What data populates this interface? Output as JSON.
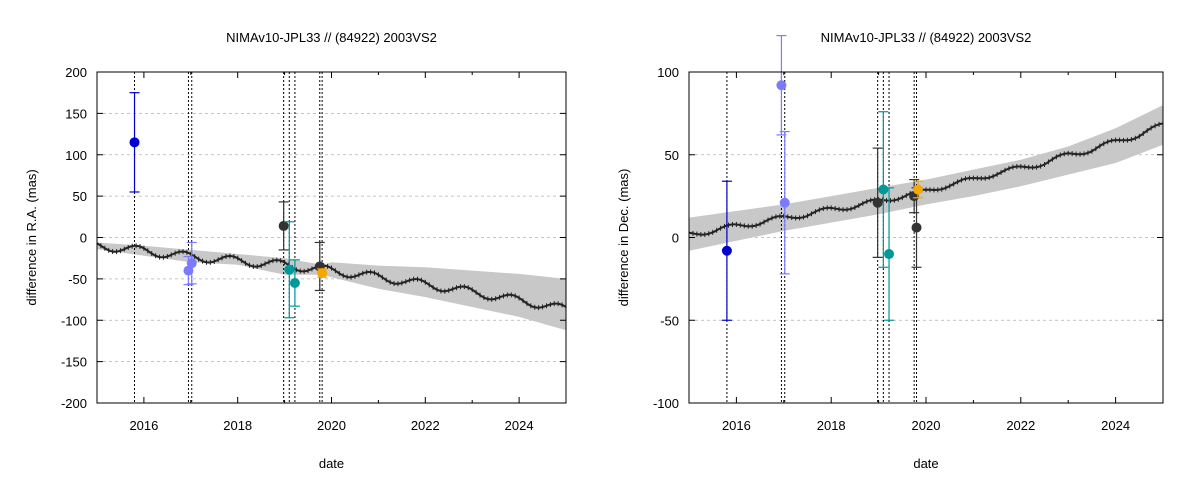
{
  "chart_data": [
    {
      "type": "line",
      "title": "NIMAv10-JPL33 // (84922) 2003VS2",
      "xlabel": "date",
      "ylabel": "difference in R.A. (mas)",
      "xlim": [
        2015.0,
        2025.0
      ],
      "ylim": [
        -200,
        200
      ],
      "x_ticks": [
        2016,
        2018,
        2020,
        2022,
        2024
      ],
      "y_ticks": [
        -200,
        -150,
        -100,
        -50,
        0,
        50,
        100,
        150,
        200
      ],
      "grid": true,
      "legend": "none",
      "observation_epochs": [
        2015.8,
        2016.95,
        2017.02,
        2018.98,
        2019.1,
        2019.22,
        2019.75,
        2019.8
      ],
      "series": [
        {
          "kind": "band",
          "color": "#c8c8c8",
          "x": [
            2015.0,
            2016.0,
            2017.0,
            2018.0,
            2019.0,
            2019.8,
            2020.0,
            2021.0,
            2022.0,
            2023.0,
            2024.0,
            2025.0
          ],
          "lower": [
            -14,
            -22,
            -30,
            -33,
            -45,
            -45,
            -48,
            -62,
            -72,
            -84,
            -96,
            -112
          ],
          "upper": [
            -6,
            -10,
            -15,
            -20,
            -25,
            -33,
            -30,
            -34,
            -36,
            -40,
            -44,
            -50
          ]
        },
        {
          "kind": "line",
          "color": "#222222",
          "x": [
            2015.0,
            2015.5,
            2016.0,
            2016.5,
            2017.0,
            2017.5,
            2018.0,
            2018.5,
            2019.0,
            2019.5,
            2020.0,
            2020.5,
            2021.0,
            2021.5,
            2022.0,
            2022.5,
            2023.0,
            2023.5,
            2024.0,
            2024.5,
            2025.0
          ],
          "y": [
            -10,
            -13,
            -16,
            -20,
            -23,
            -26,
            -28,
            -31,
            -33,
            -37,
            -40,
            -44,
            -48,
            -52,
            -57,
            -61,
            -66,
            -71,
            -76,
            -81,
            -87
          ],
          "wiggle": 5
        },
        {
          "kind": "points",
          "color": "#0000cc",
          "points": [
            {
              "x": 2015.8,
              "y": 115,
              "err": 60
            }
          ]
        },
        {
          "kind": "points",
          "color": "#7b7bff",
          "points": [
            {
              "x": 2016.95,
              "y": -40,
              "err": 17
            },
            {
              "x": 2017.02,
              "y": -31,
              "err": 25
            }
          ]
        },
        {
          "kind": "points",
          "color": "#333333",
          "points": [
            {
              "x": 2018.98,
              "y": 14,
              "err": 29
            },
            {
              "x": 2019.75,
              "y": -35,
              "err": 29
            }
          ]
        },
        {
          "kind": "points",
          "color": "#009999",
          "points": [
            {
              "x": 2019.1,
              "y": -39,
              "err": 58
            },
            {
              "x": 2019.22,
              "y": -55,
              "err": 28
            }
          ]
        },
        {
          "kind": "points",
          "color": "#f5a800",
          "points": [
            {
              "x": 2019.8,
              "y": -43,
              "err": 5
            }
          ]
        }
      ]
    },
    {
      "type": "line",
      "title": "NIMAv10-JPL33 // (84922) 2003VS2",
      "xlabel": "date",
      "ylabel": "difference in Dec. (mas)",
      "xlim": [
        2015.0,
        2025.0
      ],
      "ylim": [
        -100,
        100
      ],
      "x_ticks": [
        2016,
        2018,
        2020,
        2022,
        2024
      ],
      "y_ticks": [
        -100,
        -50,
        0,
        50,
        100
      ],
      "grid": true,
      "legend": "none",
      "observation_epochs": [
        2015.8,
        2016.95,
        2017.02,
        2018.98,
        2019.1,
        2019.22,
        2019.75,
        2019.8
      ],
      "series": [
        {
          "kind": "band",
          "color": "#c8c8c8",
          "x": [
            2015.0,
            2016.0,
            2017.0,
            2018.0,
            2019.0,
            2020.0,
            2021.0,
            2022.0,
            2023.0,
            2024.0,
            2025.0
          ],
          "lower": [
            -8,
            -2,
            4,
            9,
            14,
            20,
            25,
            31,
            38,
            45,
            56
          ],
          "upper": [
            12,
            16,
            20,
            25,
            30,
            35,
            41,
            47,
            55,
            66,
            80
          ]
        },
        {
          "kind": "line",
          "color": "#222222",
          "x": [
            2015.0,
            2015.5,
            2016.0,
            2016.5,
            2017.0,
            2017.5,
            2018.0,
            2018.5,
            2019.0,
            2019.5,
            2020.0,
            2020.5,
            2021.0,
            2021.5,
            2022.0,
            2022.5,
            2023.0,
            2023.5,
            2024.0,
            2024.5,
            2025.0
          ],
          "y": [
            2,
            4,
            7,
            9,
            12,
            14,
            17,
            19,
            22,
            25,
            28,
            32,
            35,
            39,
            42,
            45,
            50,
            53,
            58,
            62,
            68
          ],
          "wiggle": 1.5
        },
        {
          "kind": "points",
          "color": "#0000cc",
          "points": [
            {
              "x": 2015.8,
              "y": -8,
              "err": 42
            }
          ]
        },
        {
          "kind": "points",
          "color": "#7b7bff",
          "points": [
            {
              "x": 2016.95,
              "y": 92,
              "err": 30
            },
            {
              "x": 2017.02,
              "y": 21,
              "err": 43
            }
          ]
        },
        {
          "kind": "points",
          "color": "#333333",
          "points": [
            {
              "x": 2018.98,
              "y": 21,
              "err": 33
            },
            {
              "x": 2019.75,
              "y": 25,
              "err": 10
            },
            {
              "x": 2019.8,
              "y": 6,
              "err": 24
            }
          ]
        },
        {
          "kind": "points",
          "color": "#009999",
          "points": [
            {
              "x": 2019.1,
              "y": 29,
              "err": 47
            },
            {
              "x": 2019.22,
              "y": -10,
              "err": 40
            }
          ]
        },
        {
          "kind": "points",
          "color": "#f5a800",
          "points": [
            {
              "x": 2019.83,
              "y": 29,
              "err": 5
            }
          ]
        }
      ]
    }
  ]
}
